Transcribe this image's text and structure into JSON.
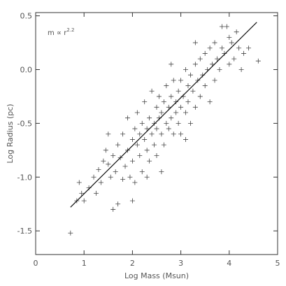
{
  "chart_data": {
    "type": "scatter",
    "annotation": {
      "text": "m ∝ r",
      "exponent": "2.2"
    },
    "x_label": "Log Mass (Msun)",
    "y_label": "Log Radius (pc)",
    "xlim": [
      0,
      5
    ],
    "ylim": [
      -1.72,
      0.53
    ],
    "xticks": [
      0,
      1,
      2,
      3,
      4,
      5
    ],
    "yticks": [
      {
        "value": -1.5,
        "label": "-1.5"
      },
      {
        "value": -1.0,
        "label": "-1.0"
      },
      {
        "value": -0.5,
        "label": "-0.5"
      },
      {
        "value": 0,
        "label": "0.0"
      },
      {
        "value": 0.5,
        "label": "0.5"
      }
    ],
    "color": "#444444",
    "x": [
      0.72,
      0.85,
      0.95,
      1.0,
      0.9,
      1.1,
      1.2,
      1.3,
      1.35,
      1.4,
      1.45,
      1.5,
      1.55,
      1.6,
      1.6,
      1.65,
      1.7,
      1.7,
      1.75,
      1.8,
      1.8,
      1.85,
      1.9,
      1.9,
      1.95,
      2.0,
      2.0,
      2.05,
      2.05,
      2.1,
      2.1,
      2.15,
      2.15,
      2.2,
      2.2,
      2.25,
      2.25,
      2.3,
      2.3,
      2.35,
      2.35,
      2.4,
      2.4,
      2.45,
      2.45,
      2.5,
      2.5,
      2.5,
      2.55,
      2.55,
      2.6,
      2.6,
      2.65,
      2.65,
      2.7,
      2.7,
      2.75,
      2.75,
      2.8,
      2.8,
      2.85,
      2.85,
      2.9,
      2.9,
      2.95,
      2.95,
      3.0,
      3.0,
      3.0,
      3.05,
      3.1,
      3.1,
      3.15,
      3.15,
      3.2,
      3.2,
      3.25,
      3.3,
      3.3,
      3.35,
      3.4,
      3.4,
      3.45,
      3.5,
      3.5,
      3.55,
      3.6,
      3.6,
      3.65,
      3.7,
      3.7,
      3.75,
      3.8,
      3.85,
      3.85,
      3.9,
      3.95,
      4.0,
      4.0,
      4.05,
      4.1,
      4.15,
      4.2,
      4.25,
      4.3,
      4.6,
      2.0,
      1.5,
      2.3,
      3.3,
      2.8,
      1.25,
      4.4,
      3.1,
      2.6
    ],
    "values": [
      -1.52,
      -1.22,
      -1.15,
      -1.22,
      -1.05,
      -1.1,
      -1.0,
      -0.93,
      -1.05,
      -0.85,
      -0.75,
      -0.88,
      -1.0,
      -0.8,
      -1.3,
      -0.95,
      -0.7,
      -1.25,
      -0.82,
      -0.6,
      -1.02,
      -0.9,
      -0.75,
      -0.45,
      -1.0,
      -0.65,
      -0.85,
      -0.55,
      -1.05,
      -0.7,
      -0.4,
      -0.8,
      -0.6,
      -0.5,
      -0.95,
      -0.65,
      -0.3,
      -0.75,
      -0.55,
      -0.45,
      -0.85,
      -0.6,
      -0.2,
      -0.5,
      -0.7,
      -0.35,
      -0.55,
      -0.8,
      -0.45,
      -0.25,
      -0.6,
      -0.4,
      -0.3,
      -0.7,
      -0.5,
      -0.15,
      -0.35,
      -0.55,
      -0.25,
      -0.45,
      -0.1,
      -0.6,
      -0.3,
      -0.4,
      -0.2,
      -0.5,
      -0.1,
      -0.35,
      -0.6,
      -0.25,
      0.0,
      -0.4,
      -0.15,
      -0.3,
      -0.05,
      -0.5,
      -0.2,
      0.05,
      -0.35,
      -0.1,
      0.1,
      -0.25,
      -0.05,
      0.15,
      -0.15,
      0.0,
      0.2,
      -0.3,
      0.05,
      0.25,
      -0.1,
      0.1,
      0.0,
      0.4,
      0.2,
      0.15,
      0.4,
      0.05,
      0.3,
      0.25,
      0.1,
      0.35,
      0.2,
      0.0,
      0.15,
      0.08,
      -1.22,
      -0.6,
      -1.0,
      0.25,
      0.05,
      -1.15,
      0.2,
      -0.65,
      -0.95
    ],
    "fit_line": {
      "x": [
        0.72,
        4.57
      ],
      "y": [
        -1.28,
        0.44
      ]
    }
  }
}
